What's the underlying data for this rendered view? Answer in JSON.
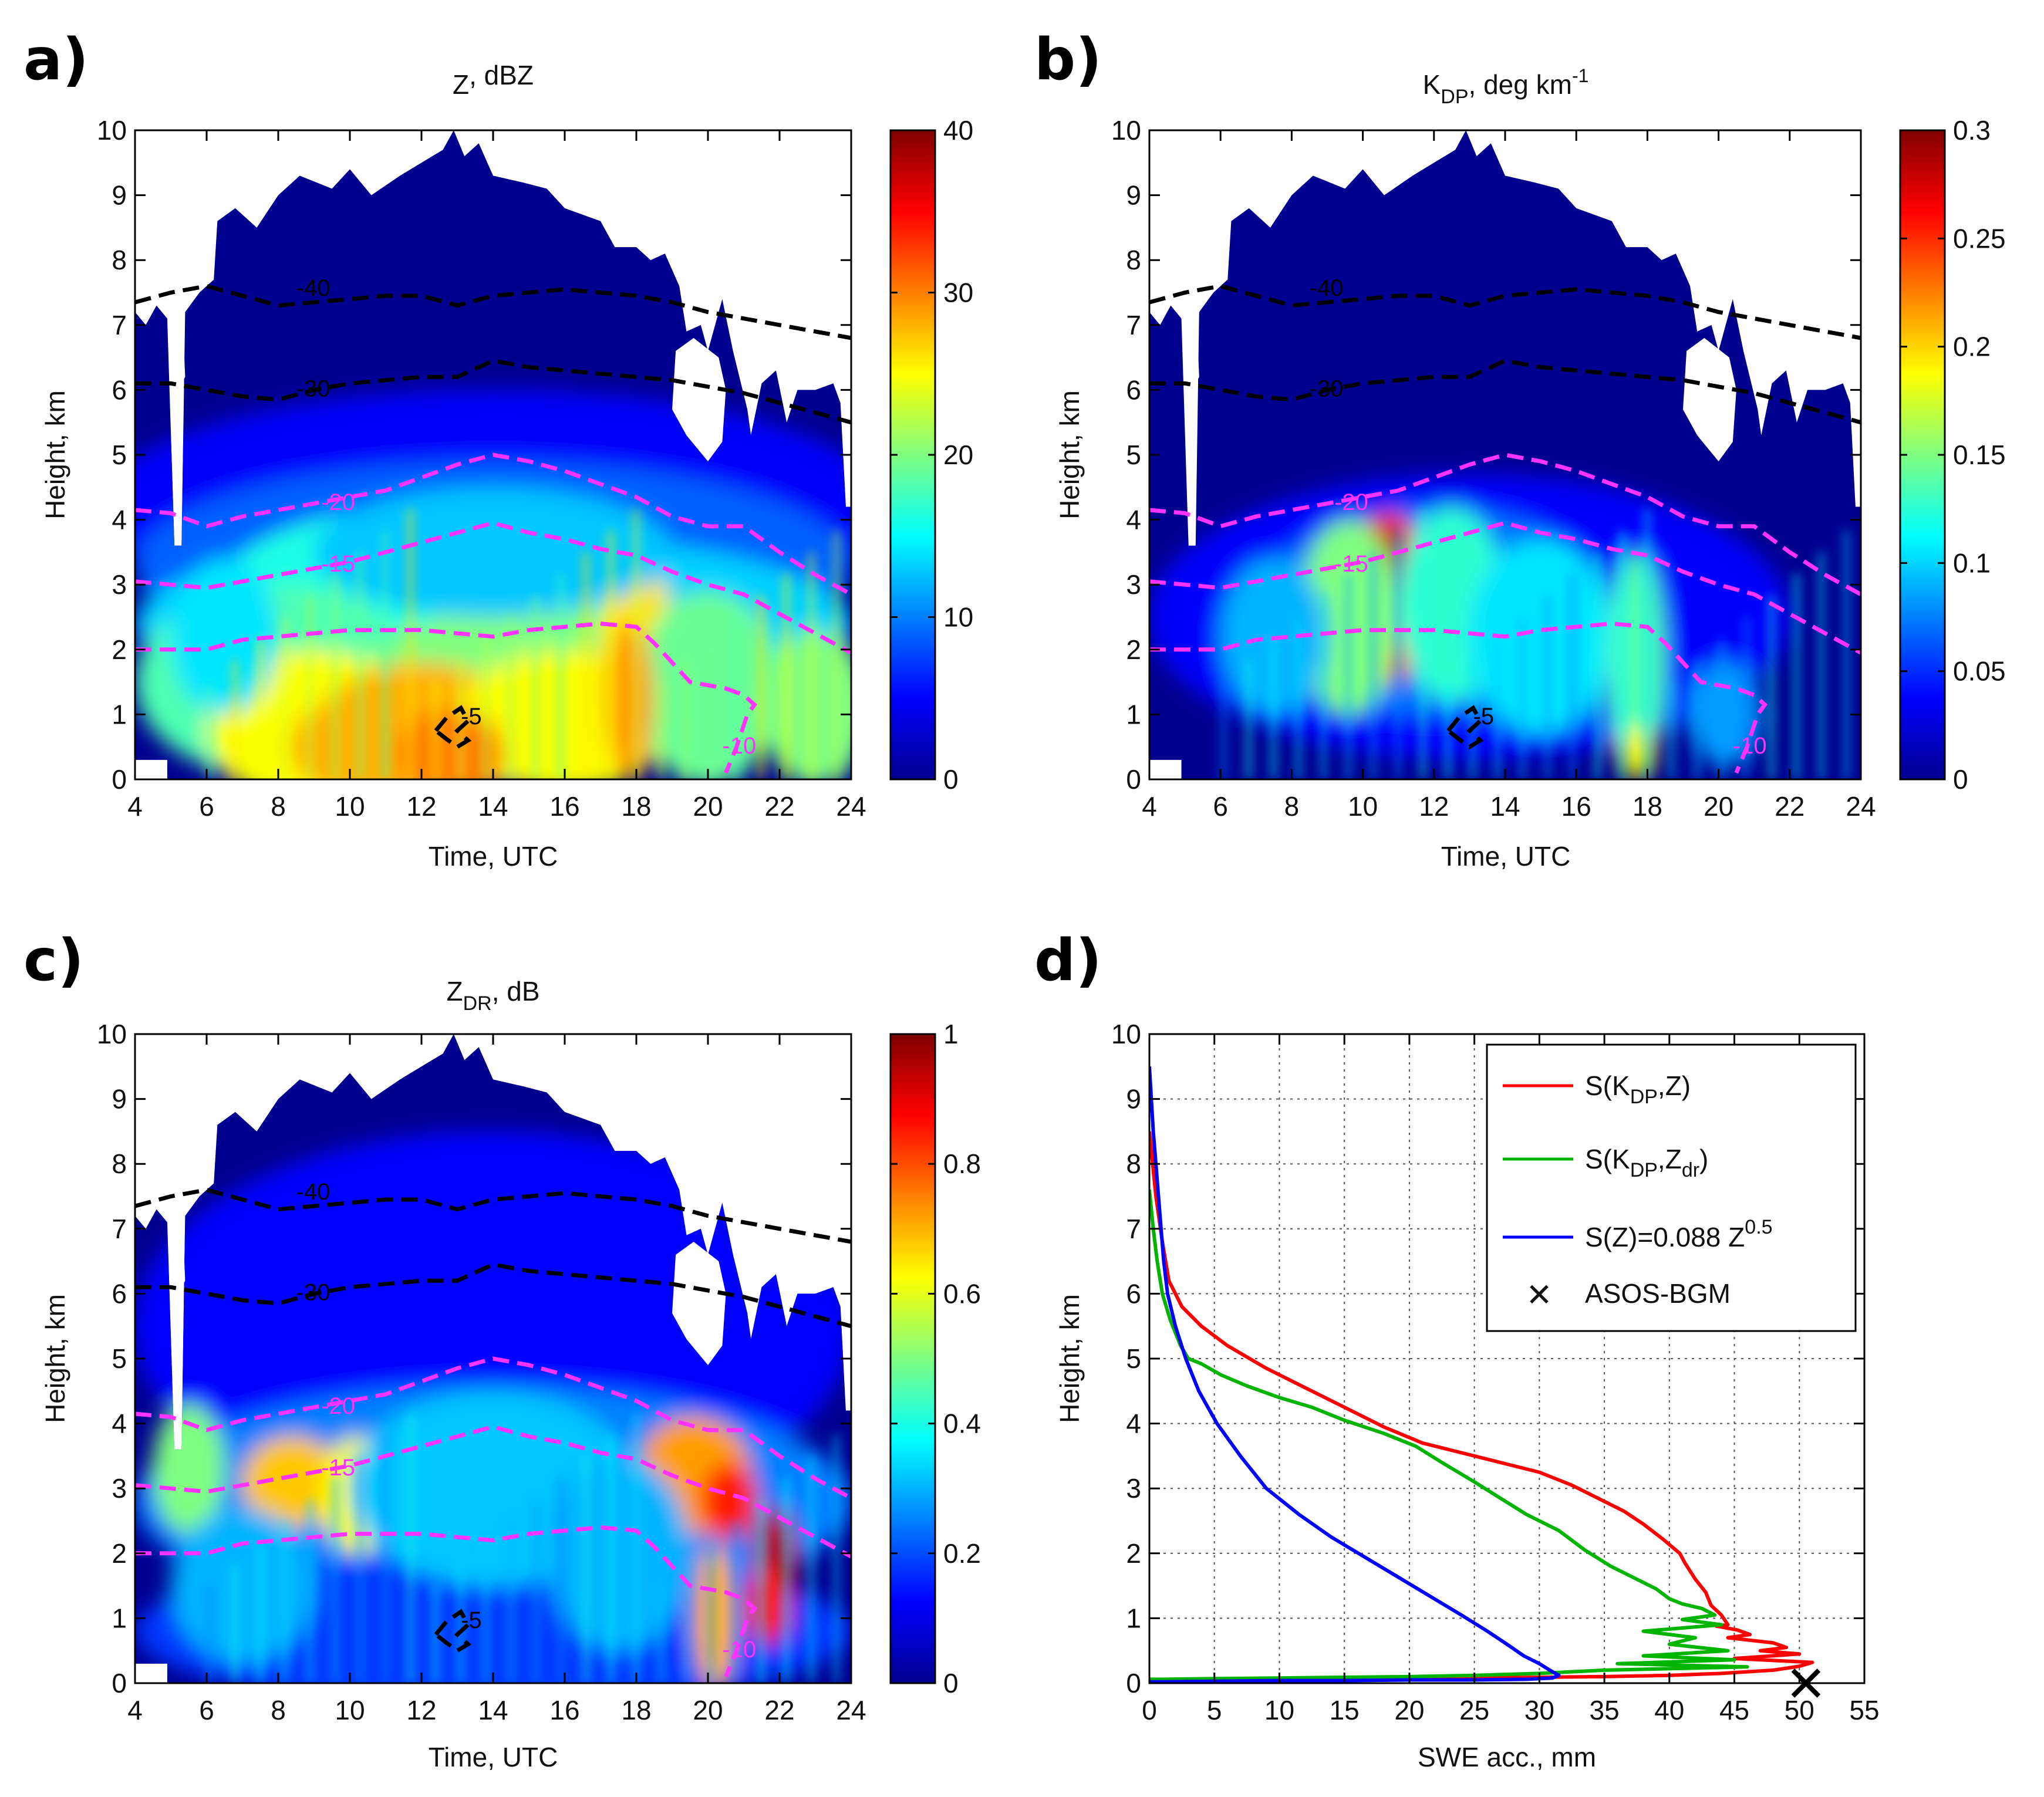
{
  "chart_data": [
    {
      "panel": "a)",
      "type": "heatmap",
      "title_main": "Z",
      "title_sub": "",
      "title_after": ", dBZ",
      "title_sup": "",
      "xlabel": "Time, UTC",
      "ylabel": "Height, km",
      "xlim": [
        4,
        24
      ],
      "ylim": [
        0,
        10
      ],
      "xticks": [
        "4",
        "6",
        "8",
        "10",
        "12",
        "14",
        "16",
        "18",
        "20",
        "22",
        "24"
      ],
      "yticks": [
        "0",
        "1",
        "2",
        "3",
        "4",
        "5",
        "6",
        "7",
        "8",
        "9",
        "10"
      ],
      "colorbar": {
        "range": [
          0,
          40
        ],
        "ticks": [
          "0",
          "10",
          "20",
          "30",
          "40"
        ]
      },
      "field": "Z",
      "contours": [
        {
          "label": "-40",
          "color": "#000000",
          "label_at": [
            8.5,
            7.45
          ]
        },
        {
          "label": "-30",
          "color": "#000000",
          "label_at": [
            8.5,
            5.9
          ]
        },
        {
          "label": "-20",
          "color": "#ff33ff",
          "label_at": [
            9.2,
            4.15
          ]
        },
        {
          "label": "-15",
          "color": "#ff33ff",
          "label_at": [
            9.2,
            3.2
          ]
        },
        {
          "label": "-10",
          "color": "#ff33ff",
          "label_at": [
            20.4,
            0.4
          ]
        },
        {
          "label": "-5",
          "color": "#000000",
          "label_at": [
            13.1,
            0.85
          ]
        }
      ]
    },
    {
      "panel": "b)",
      "type": "heatmap",
      "title_main": "K",
      "title_sub": "DP",
      "title_after": ", deg km",
      "title_sup": "-1",
      "xlabel": "Time, UTC",
      "ylabel": "Height, km",
      "xlim": [
        4,
        24
      ],
      "ylim": [
        0,
        10
      ],
      "xticks": [
        "4",
        "6",
        "8",
        "10",
        "12",
        "14",
        "16",
        "18",
        "20",
        "22",
        "24"
      ],
      "yticks": [
        "0",
        "1",
        "2",
        "3",
        "4",
        "5",
        "6",
        "7",
        "8",
        "9",
        "10"
      ],
      "colorbar": {
        "range": [
          0,
          0.3
        ],
        "ticks": [
          "0",
          "0.05",
          "0.1",
          "0.15",
          "0.2",
          "0.25",
          "0.3"
        ]
      },
      "field": "KDP",
      "contours": [
        {
          "label": "-40",
          "color": "#000000",
          "label_at": [
            8.5,
            7.45
          ]
        },
        {
          "label": "-30",
          "color": "#000000",
          "label_at": [
            8.5,
            5.9
          ]
        },
        {
          "label": "-20",
          "color": "#ff33ff",
          "label_at": [
            9.2,
            4.15
          ]
        },
        {
          "label": "-15",
          "color": "#ff33ff",
          "label_at": [
            9.2,
            3.2
          ]
        },
        {
          "label": "-10",
          "color": "#ff33ff",
          "label_at": [
            20.4,
            0.4
          ]
        },
        {
          "label": "-5",
          "color": "#000000",
          "label_at": [
            13.1,
            0.85
          ]
        }
      ]
    },
    {
      "panel": "c)",
      "type": "heatmap",
      "title_main": "Z",
      "title_sub": "DR",
      "title_after": ", dB",
      "title_sup": "",
      "xlabel": "Time, UTC",
      "ylabel": "Height, km",
      "xlim": [
        4,
        24
      ],
      "ylim": [
        0,
        10
      ],
      "xticks": [
        "4",
        "6",
        "8",
        "10",
        "12",
        "14",
        "16",
        "18",
        "20",
        "22",
        "24"
      ],
      "yticks": [
        "0",
        "1",
        "2",
        "3",
        "4",
        "5",
        "6",
        "7",
        "8",
        "9",
        "10"
      ],
      "colorbar": {
        "range": [
          0,
          1
        ],
        "ticks": [
          "0",
          "0.2",
          "0.4",
          "0.6",
          "0.8",
          "1"
        ]
      },
      "field": "ZDR",
      "contours": [
        {
          "label": "-40",
          "color": "#000000",
          "label_at": [
            8.5,
            7.45
          ]
        },
        {
          "label": "-30",
          "color": "#000000",
          "label_at": [
            8.5,
            5.9
          ]
        },
        {
          "label": "-20",
          "color": "#ff33ff",
          "label_at": [
            9.2,
            4.15
          ]
        },
        {
          "label": "-15",
          "color": "#ff33ff",
          "label_at": [
            9.2,
            3.2
          ]
        },
        {
          "label": "-10",
          "color": "#ff33ff",
          "label_at": [
            20.4,
            0.4
          ]
        },
        {
          "label": "-5",
          "color": "#000000",
          "label_at": [
            13.1,
            0.85
          ]
        }
      ]
    },
    {
      "panel": "d)",
      "type": "line",
      "xlabel": "SWE acc., mm",
      "ylabel": "Height, km",
      "xlim": [
        0,
        55
      ],
      "ylim": [
        0,
        10
      ],
      "xticks": [
        "0",
        "5",
        "10",
        "15",
        "20",
        "25",
        "30",
        "35",
        "40",
        "45",
        "50",
        "55"
      ],
      "yticks": [
        "0",
        "1",
        "2",
        "3",
        "4",
        "5",
        "6",
        "7",
        "8",
        "9",
        "10"
      ],
      "grid": true,
      "legend_position": "top-right",
      "series": [
        {
          "legend": {
            "pre": "S(K",
            "sub": "DP",
            "post": ",Z)",
            "sub2": "",
            "post2": "",
            "sup": ""
          },
          "color": "#ff0000",
          "x": [
            0,
            0.5,
            1,
            1.5,
            2.5,
            4,
            6,
            9,
            12,
            15,
            18,
            21,
            24,
            27,
            30,
            32.5,
            34.5,
            36.5,
            38,
            39.5,
            40.2,
            40.8,
            41.2,
            42,
            42.8,
            43.2,
            44,
            44.5,
            43.6,
            45.2,
            46.2,
            44.5,
            48,
            49,
            47,
            50,
            45,
            51,
            50,
            48,
            44,
            40,
            35,
            30,
            25,
            20,
            15,
            10,
            5,
            2,
            0.5,
            0
          ],
          "y": [
            8.5,
            7.5,
            6.8,
            6.2,
            5.8,
            5.5,
            5.2,
            4.85,
            4.55,
            4.25,
            3.95,
            3.7,
            3.55,
            3.4,
            3.25,
            3.05,
            2.85,
            2.65,
            2.45,
            2.22,
            2.1,
            2.0,
            1.85,
            1.6,
            1.4,
            1.2,
            1.05,
            0.9,
            0.88,
            0.82,
            0.75,
            0.7,
            0.62,
            0.55,
            0.5,
            0.45,
            0.38,
            0.32,
            0.26,
            0.2,
            0.15,
            0.12,
            0.1,
            0.09,
            0.08,
            0.07,
            0.06,
            0.05,
            0.04,
            0.03,
            0.02,
            0.02
          ]
        },
        {
          "legend": {
            "pre": "S(K",
            "sub": "DP",
            "post": ",Z",
            "sub2": "dr",
            "post2": ")",
            "sup": ""
          },
          "color": "#00b400",
          "x": [
            0,
            0.3,
            0.6,
            1,
            1.6,
            2.4,
            3,
            4,
            5.5,
            7.5,
            10,
            12.5,
            15,
            18,
            20.5,
            22.5,
            25,
            27,
            29,
            31.5,
            33.5,
            35.5,
            37.5,
            39,
            40,
            41,
            42.5,
            43.5,
            41,
            44,
            38,
            42,
            40,
            44.5,
            38,
            45,
            36,
            46,
            35,
            30,
            25,
            20,
            15,
            10,
            5,
            1,
            0
          ],
          "y": [
            7.6,
            7.0,
            6.5,
            6.0,
            5.6,
            5.2,
            5.0,
            4.92,
            4.75,
            4.58,
            4.4,
            4.25,
            4.05,
            3.85,
            3.65,
            3.4,
            3.1,
            2.85,
            2.6,
            2.35,
            2.05,
            1.8,
            1.6,
            1.45,
            1.3,
            1.22,
            1.15,
            1.05,
            0.98,
            0.9,
            0.8,
            0.7,
            0.6,
            0.5,
            0.42,
            0.36,
            0.3,
            0.25,
            0.2,
            0.15,
            0.12,
            0.1,
            0.09,
            0.08,
            0.07,
            0.06,
            0.06
          ]
        },
        {
          "legend": {
            "pre": "S(Z)=0.088 Z",
            "sub": "",
            "post": "",
            "sub2": "",
            "post2": "",
            "sup": "0.5"
          },
          "color": "#0000ff",
          "x": [
            0,
            0.15,
            0.3,
            0.5,
            0.7,
            0.9,
            1.1,
            1.4,
            2,
            2.8,
            3.8,
            5.2,
            7,
            9,
            11.5,
            14,
            16.5,
            19,
            21.5,
            24,
            26,
            27.5,
            28.8,
            30,
            30.8,
            31.5,
            31,
            29,
            25,
            20,
            15,
            10,
            5,
            1,
            0
          ],
          "y": [
            9.5,
            9.0,
            8.5,
            8.0,
            7.5,
            7.0,
            6.5,
            6.0,
            5.5,
            5.0,
            4.5,
            4.0,
            3.5,
            3.0,
            2.6,
            2.25,
            1.95,
            1.65,
            1.35,
            1.05,
            0.8,
            0.6,
            0.42,
            0.3,
            0.2,
            0.12,
            0.08,
            0.06,
            0.05,
            0.05,
            0.04,
            0.04,
            0.03,
            0.02,
            0.02
          ]
        }
      ],
      "observation": {
        "legend": "ASOS-BGM",
        "x": 50.5,
        "y": 0,
        "marker": "✕",
        "color": "#000000"
      }
    }
  ],
  "panel_labels": [
    "a)",
    "b)",
    "c)",
    "d)"
  ]
}
